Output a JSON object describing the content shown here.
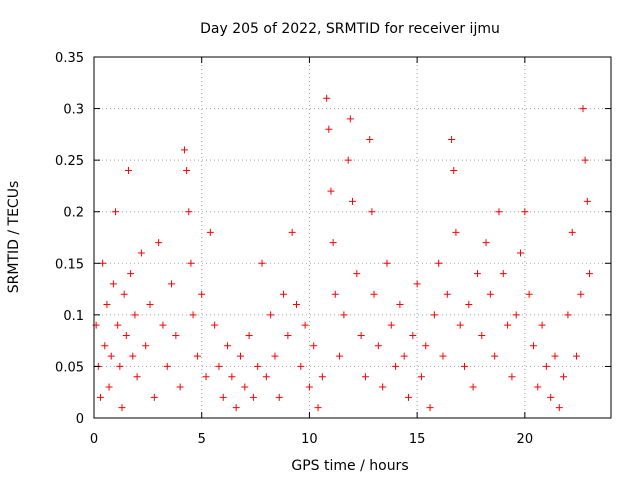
{
  "chart_data": {
    "type": "scatter",
    "title": "Day 205 of 2022, SRMTID for receiver ijmu",
    "xlabel": "GPS time / hours",
    "ylabel": "SRMTID / TECUs",
    "xlim": [
      0,
      24
    ],
    "ylim": [
      0,
      0.35
    ],
    "x_ticks": [
      0,
      5,
      10,
      15,
      20
    ],
    "x_tick_labels": [
      "0",
      "5",
      "10",
      "15",
      "20"
    ],
    "y_ticks": [
      0,
      0.05,
      0.1,
      0.15,
      0.2,
      0.25,
      0.3,
      0.35
    ],
    "y_tick_labels": [
      "0",
      "0.05",
      "0.1",
      "0.15",
      "0.2",
      "0.25",
      "0.3",
      "0.35"
    ],
    "grid": true,
    "marker": "plus",
    "color": "#ff0000",
    "series": [
      {
        "points": [
          [
            0.1,
            0.09
          ],
          [
            0.2,
            0.05
          ],
          [
            0.3,
            0.02
          ],
          [
            0.4,
            0.15
          ],
          [
            0.5,
            0.07
          ],
          [
            0.6,
            0.11
          ],
          [
            0.7,
            0.03
          ],
          [
            0.8,
            0.06
          ],
          [
            0.9,
            0.13
          ],
          [
            1.0,
            0.2
          ],
          [
            1.1,
            0.09
          ],
          [
            1.2,
            0.05
          ],
          [
            1.3,
            0.01
          ],
          [
            1.4,
            0.12
          ],
          [
            1.5,
            0.08
          ],
          [
            1.6,
            0.24
          ],
          [
            1.7,
            0.14
          ],
          [
            1.8,
            0.06
          ],
          [
            1.9,
            0.1
          ],
          [
            2.0,
            0.04
          ],
          [
            2.2,
            0.16
          ],
          [
            2.4,
            0.07
          ],
          [
            2.6,
            0.11
          ],
          [
            2.8,
            0.02
          ],
          [
            3.0,
            0.17
          ],
          [
            3.2,
            0.09
          ],
          [
            3.4,
            0.05
          ],
          [
            3.6,
            0.13
          ],
          [
            3.8,
            0.08
          ],
          [
            4.0,
            0.03
          ],
          [
            4.2,
            0.26
          ],
          [
            4.3,
            0.24
          ],
          [
            4.4,
            0.2
          ],
          [
            4.5,
            0.15
          ],
          [
            4.6,
            0.1
          ],
          [
            4.8,
            0.06
          ],
          [
            5.0,
            0.12
          ],
          [
            5.2,
            0.04
          ],
          [
            5.4,
            0.18
          ],
          [
            5.6,
            0.09
          ],
          [
            5.8,
            0.05
          ],
          [
            6.0,
            0.02
          ],
          [
            6.2,
            0.07
          ],
          [
            6.4,
            0.04
          ],
          [
            6.6,
            0.01
          ],
          [
            6.8,
            0.06
          ],
          [
            7.0,
            0.03
          ],
          [
            7.2,
            0.08
          ],
          [
            7.4,
            0.02
          ],
          [
            7.6,
            0.05
          ],
          [
            7.8,
            0.15
          ],
          [
            8.0,
            0.04
          ],
          [
            8.2,
            0.1
          ],
          [
            8.4,
            0.06
          ],
          [
            8.6,
            0.02
          ],
          [
            8.8,
            0.12
          ],
          [
            9.0,
            0.08
          ],
          [
            9.2,
            0.18
          ],
          [
            9.4,
            0.11
          ],
          [
            9.6,
            0.05
          ],
          [
            9.8,
            0.09
          ],
          [
            10.0,
            0.03
          ],
          [
            10.2,
            0.07
          ],
          [
            10.4,
            0.01
          ],
          [
            10.6,
            0.04
          ],
          [
            10.8,
            0.31
          ],
          [
            10.9,
            0.28
          ],
          [
            11.0,
            0.22
          ],
          [
            11.1,
            0.17
          ],
          [
            11.2,
            0.12
          ],
          [
            11.4,
            0.06
          ],
          [
            11.6,
            0.1
          ],
          [
            11.8,
            0.25
          ],
          [
            11.9,
            0.29
          ],
          [
            12.0,
            0.21
          ],
          [
            12.2,
            0.14
          ],
          [
            12.4,
            0.08
          ],
          [
            12.6,
            0.04
          ],
          [
            12.8,
            0.27
          ],
          [
            12.9,
            0.2
          ],
          [
            13.0,
            0.12
          ],
          [
            13.2,
            0.07
          ],
          [
            13.4,
            0.03
          ],
          [
            13.6,
            0.15
          ],
          [
            13.8,
            0.09
          ],
          [
            14.0,
            0.05
          ],
          [
            14.2,
            0.11
          ],
          [
            14.4,
            0.06
          ],
          [
            14.6,
            0.02
          ],
          [
            14.8,
            0.08
          ],
          [
            15.0,
            0.13
          ],
          [
            15.2,
            0.04
          ],
          [
            15.4,
            0.07
          ],
          [
            15.6,
            0.01
          ],
          [
            15.8,
            0.1
          ],
          [
            16.0,
            0.15
          ],
          [
            16.2,
            0.06
          ],
          [
            16.4,
            0.12
          ],
          [
            16.6,
            0.27
          ],
          [
            16.7,
            0.24
          ],
          [
            16.8,
            0.18
          ],
          [
            17.0,
            0.09
          ],
          [
            17.2,
            0.05
          ],
          [
            17.4,
            0.11
          ],
          [
            17.6,
            0.03
          ],
          [
            17.8,
            0.14
          ],
          [
            18.0,
            0.08
          ],
          [
            18.2,
            0.17
          ],
          [
            18.4,
            0.12
          ],
          [
            18.6,
            0.06
          ],
          [
            18.8,
            0.2
          ],
          [
            19.0,
            0.14
          ],
          [
            19.2,
            0.09
          ],
          [
            19.4,
            0.04
          ],
          [
            19.6,
            0.1
          ],
          [
            19.8,
            0.16
          ],
          [
            20.0,
            0.2
          ],
          [
            20.2,
            0.12
          ],
          [
            20.4,
            0.07
          ],
          [
            20.6,
            0.03
          ],
          [
            20.8,
            0.09
          ],
          [
            21.0,
            0.05
          ],
          [
            21.2,
            0.02
          ],
          [
            21.4,
            0.06
          ],
          [
            21.6,
            0.01
          ],
          [
            21.8,
            0.04
          ],
          [
            22.0,
            0.1
          ],
          [
            22.2,
            0.18
          ],
          [
            22.4,
            0.06
          ],
          [
            22.6,
            0.12
          ],
          [
            22.7,
            0.3
          ],
          [
            22.8,
            0.25
          ],
          [
            22.9,
            0.21
          ],
          [
            23.0,
            0.14
          ]
        ]
      }
    ]
  }
}
